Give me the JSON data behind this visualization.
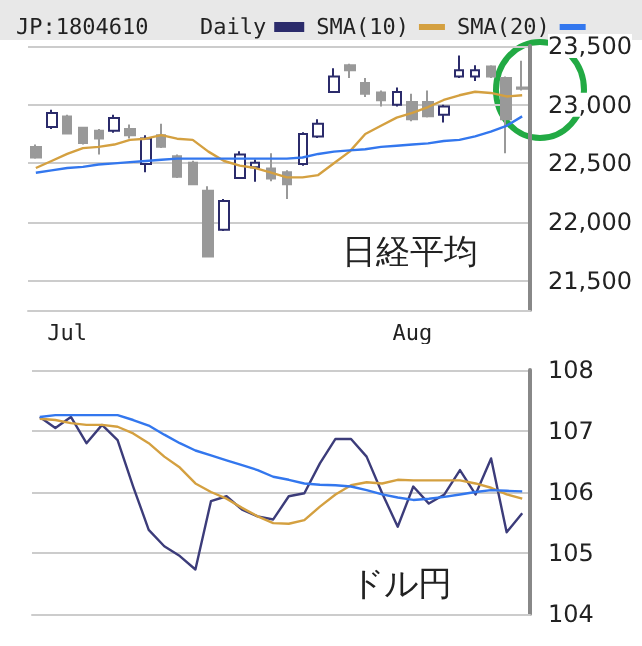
{
  "chart_data": [
    {
      "type": "candlestick",
      "title": "JP:1804610",
      "categories": [
        null,
        null,
        "Jul",
        null,
        null,
        null,
        null,
        null,
        null,
        null,
        null,
        null,
        null,
        null,
        null,
        null,
        null,
        null,
        null,
        null,
        null,
        null,
        null,
        null,
        "Aug",
        null,
        null,
        null,
        null,
        null,
        null,
        null
      ],
      "series": [
        {
          "name": "Daily",
          "color": "#2b2b6b",
          "colors": [
            "#999999",
            "#2b2b6b",
            "#999999",
            "#999999",
            "#999999",
            "#2b2b6b",
            "#999999",
            "#2b2b6b",
            "#999999",
            "#999999",
            "#999999",
            "#999999",
            "#2b2b6b",
            "#2b2b6b",
            "#2b2b6b",
            "#999999",
            "#999999",
            "#2b2b6b",
            "#2b2b6b",
            "#2b2b6b",
            "#999999",
            "#999999",
            "#999999",
            "#2b2b6b",
            "#999999",
            "#999999",
            "#2b2b6b",
            "#2b2b6b",
            "#2b2b6b",
            "#999999",
            "#999999",
            "#999999"
          ],
          "ohlc": [
            [
              22640,
              22660,
              22540,
              22550
            ],
            [
              22810,
              22957,
              22793,
              22930
            ],
            [
              22900,
              22913,
              22750,
              22755
            ],
            [
              22804,
              22810,
              22660,
              22674
            ],
            [
              22777,
              22793,
              22576,
              22712
            ],
            [
              22777,
              22913,
              22761,
              22886
            ],
            [
              22793,
              22831,
              22712,
              22739
            ],
            [
              22495,
              22739,
              22424,
              22712
            ],
            [
              22739,
              22837,
              22630,
              22641
            ],
            [
              22560,
              22576,
              22375,
              22386
            ],
            [
              22505,
              22522,
              22321,
              22321
            ],
            [
              22266,
              22304,
              21707,
              21707
            ],
            [
              21935,
              22196,
              21924,
              22179
            ],
            [
              22375,
              22603,
              22375,
              22576
            ],
            [
              22467,
              22533,
              22342,
              22505
            ],
            [
              22457,
              22587,
              22348,
              22370
            ],
            [
              22424,
              22440,
              22196,
              22321
            ],
            [
              22495,
              22765,
              22480,
              22750
            ],
            [
              22728,
              22875,
              22715,
              22837
            ],
            [
              23109,
              23310,
              23109,
              23239
            ],
            [
              23337,
              23348,
              23228,
              23293
            ],
            [
              23185,
              23228,
              23065,
              23092
            ],
            [
              23103,
              23120,
              22984,
              23038
            ],
            [
              23000,
              23147,
              22984,
              23109
            ],
            [
              23022,
              23092,
              22859,
              22875
            ],
            [
              23022,
              23120,
              22890,
              22902
            ],
            [
              22913,
              23000,
              22848,
              22984
            ],
            [
              23239,
              23418,
              23228,
              23293
            ],
            [
              23239,
              23337,
              23201,
              23293
            ],
            [
              23326,
              23337,
              23228,
              23239
            ],
            [
              23228,
              23239,
              22587,
              22875
            ],
            [
              23147,
              23375,
              23120,
              23136
            ]
          ]
        },
        {
          "name": "SMA(10)",
          "type": "line",
          "color": "#d4a040",
          "values": [
            22460,
            22520,
            22580,
            22630,
            22640,
            22660,
            22700,
            22710,
            22740,
            22710,
            22700,
            22600,
            22520,
            22480,
            22460,
            22420,
            22380,
            22380,
            22400,
            22500,
            22600,
            22750,
            22820,
            22890,
            22930,
            22980,
            23040,
            23080,
            23110,
            23100,
            23070,
            23080
          ]
        },
        {
          "name": "SMA(20)",
          "type": "line",
          "color": "#3377ee",
          "values": [
            22420,
            22440,
            22460,
            22470,
            22490,
            22500,
            22510,
            22520,
            22530,
            22540,
            22540,
            22540,
            22540,
            22540,
            22540,
            22540,
            22540,
            22550,
            22580,
            22600,
            22610,
            22620,
            22640,
            22650,
            22660,
            22670,
            22690,
            22700,
            22730,
            22770,
            22820,
            22900
          ]
        }
      ],
      "ylim": [
        21250,
        23500
      ],
      "yticks": [
        {
          "value": 21500,
          "label": "21,500"
        },
        {
          "value": 22000,
          "label": "22,000"
        },
        {
          "value": 22500,
          "label": "22,500"
        },
        {
          "value": 23000,
          "label": "23,000"
        },
        {
          "value": 23500,
          "label": "23,500"
        }
      ],
      "grid": "y",
      "legend": "top",
      "marker": "none",
      "line_style": "solid",
      "annotations": [
        "日経平均"
      ]
    },
    {
      "type": "line",
      "categories": [
        null,
        null,
        null,
        null,
        null,
        null,
        null,
        null,
        null,
        null,
        null,
        null,
        null,
        null,
        null,
        null,
        null,
        null,
        null,
        null,
        null,
        null,
        null,
        null,
        null,
        null,
        null,
        null,
        null,
        null,
        null,
        null
      ],
      "series": [
        {
          "color": "#3c3c7a",
          "values": [
            107.23,
            107.05,
            107.23,
            106.8,
            107.1,
            106.85,
            106.09,
            105.38,
            105.11,
            104.95,
            104.73,
            105.85,
            105.93,
            105.71,
            105.6,
            105.55,
            105.93,
            105.98,
            106.47,
            106.87,
            106.87,
            106.58,
            105.98,
            105.43,
            106.09,
            105.81,
            105.96,
            106.36,
            105.96,
            106.55,
            105.34,
            105.65
          ]
        },
        {
          "color": "#d4a040",
          "values": [
            107.2,
            107.18,
            107.13,
            107.1,
            107.1,
            107.07,
            106.96,
            106.8,
            106.58,
            106.4,
            106.14,
            106.0,
            105.89,
            105.74,
            105.6,
            105.49,
            105.48,
            105.54,
            105.76,
            105.96,
            106.11,
            106.16,
            106.14,
            106.2,
            106.19,
            106.19,
            106.19,
            106.19,
            106.14,
            106.07,
            105.96,
            105.89
          ]
        },
        {
          "color": "#3377ee",
          "values": [
            107.23,
            107.26,
            107.26,
            107.26,
            107.26,
            107.26,
            107.18,
            107.09,
            106.94,
            106.8,
            106.68,
            106.6,
            106.52,
            106.44,
            106.36,
            106.25,
            106.2,
            106.14,
            106.12,
            106.11,
            106.09,
            106.03,
            105.96,
            105.91,
            105.87,
            105.89,
            105.92,
            105.96,
            106.0,
            106.03,
            106.02,
            106.01
          ]
        }
      ],
      "ylim": [
        104,
        108
      ],
      "yticks": [
        104,
        105,
        106,
        107,
        108
      ],
      "grid": "y",
      "tick_labels": "y",
      "marker": "none",
      "line_style": "solid",
      "annotations": [
        "ドル円"
      ]
    }
  ]
}
